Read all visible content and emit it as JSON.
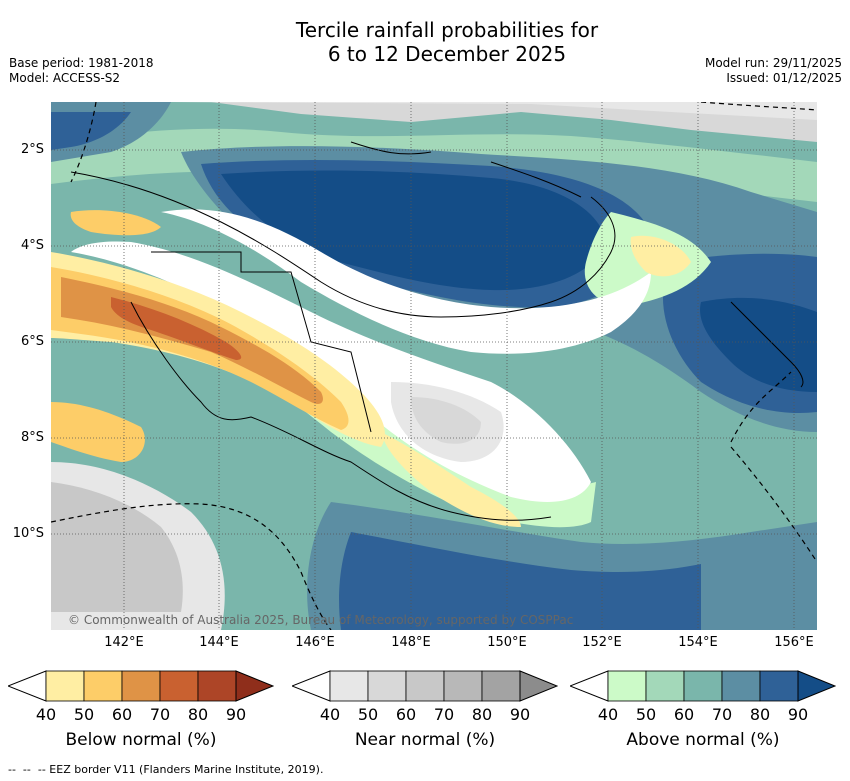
{
  "title": "Tercile rainfall probabilities for\n6 to 12 December 2025",
  "meta_left": [
    "Base period: 1981-2018",
    "Model: ACCESS-S2"
  ],
  "meta_right": [
    "Model run: 29/11/2025",
    "Issued: 01/12/2025"
  ],
  "lat_labels": [
    "2°S",
    "4°S",
    "6°S",
    "8°S",
    "10°S"
  ],
  "lon_labels": [
    "142°E",
    "144°E",
    "146°E",
    "148°E",
    "150°E",
    "152°E",
    "154°E",
    "156°E"
  ],
  "copyright": "© Commonwealth of Australia 2025, Bureau of Meteorology, supported by COSPPac",
  "colorbars": [
    {
      "title": "Below normal (%)",
      "ticks": [
        "40",
        "50",
        "60",
        "70",
        "80",
        "90"
      ],
      "colors": [
        "#ffeea3",
        "#fdcd68",
        "#df9346",
        "#c96130",
        "#ad4527",
        "#8f2e1b"
      ]
    },
    {
      "title": "Near normal (%)",
      "ticks": [
        "40",
        "50",
        "60",
        "70",
        "80",
        "90"
      ],
      "colors": [
        "#e7e7e7",
        "#d8d8d8",
        "#c8c8c8",
        "#b8b8b8",
        "#a3a3a3",
        "#8c8c8c"
      ]
    },
    {
      "title": "Above normal (%)",
      "ticks": [
        "40",
        "50",
        "60",
        "70",
        "80",
        "90"
      ],
      "colors": [
        "#ccfac8",
        "#a3d8b9",
        "#7ab6ab",
        "#5c8ea3",
        "#2f6197",
        "#144d87"
      ]
    }
  ],
  "footnote": "--  --  -- EEZ border V11 (Flanders Marine Institute, 2019)."
}
